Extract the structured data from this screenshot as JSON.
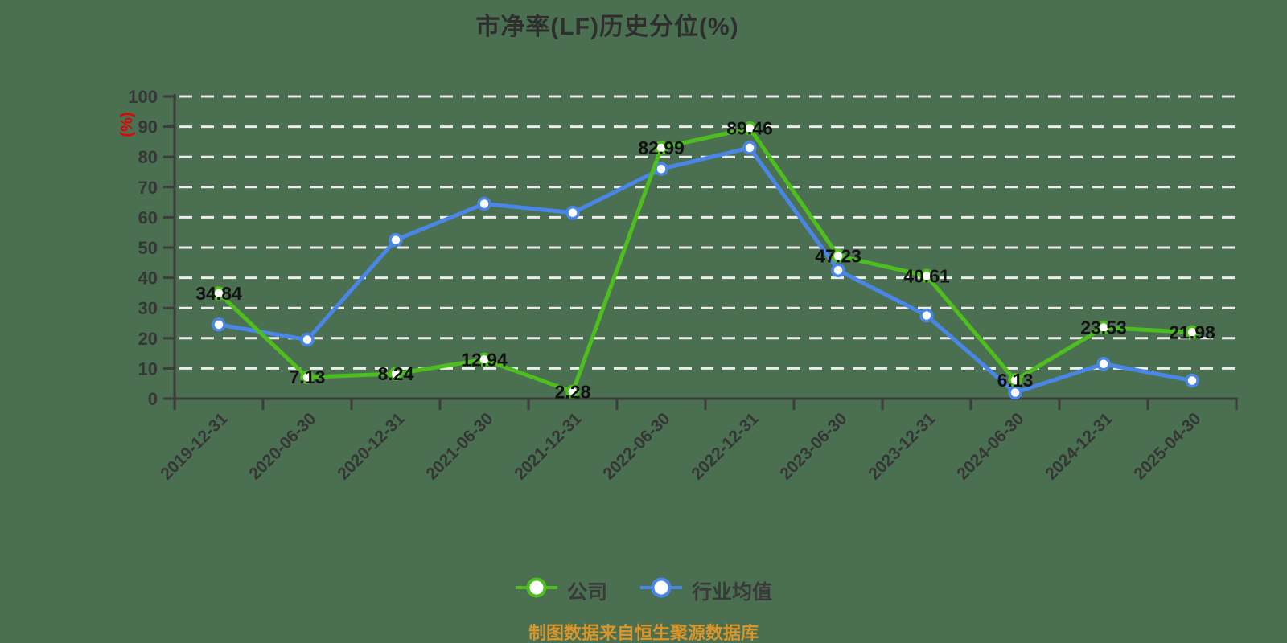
{
  "chart": {
    "title": "市净率(LF)历史分位(%)"
  },
  "colors": {
    "background": "#4a7051",
    "title_text": "#2e2e2e",
    "axis_line": "#3c3c3c",
    "axis_text": "#363636",
    "grid_line": "#ececec",
    "data_label": "#121212",
    "y_axis_name": "#e60000",
    "source_text": "#d9952a",
    "company_series": "#4ebe1f",
    "industry_series": "#4a86e8"
  },
  "chart_data": {
    "type": "line",
    "title": "市净率(LF)历史分位(%)",
    "xlabel": "",
    "ylabel": "(%)",
    "ylim": [
      0,
      100
    ],
    "y_ticks": [
      0,
      10,
      20,
      30,
      40,
      50,
      60,
      70,
      80,
      90,
      100
    ],
    "grid": "horizontal-dashed-white",
    "legend_position": "bottom",
    "x_label_rotation": 45,
    "source_note": "制图数据来自恒生聚源数据库",
    "categories": [
      "2019-12-31",
      "2020-06-30",
      "2020-12-31",
      "2021-06-30",
      "2021-12-31",
      "2022-06-30",
      "2022-12-31",
      "2023-06-30",
      "2023-12-31",
      "2024-06-30",
      "2024-12-31",
      "2025-04-30"
    ],
    "series": [
      {
        "name": "公司",
        "color": "#4ebe1f",
        "show_labels": true,
        "values": [
          34.84,
          7.13,
          8.24,
          12.94,
          2.28,
          82.99,
          89.46,
          47.23,
          40.61,
          6.13,
          23.53,
          21.98
        ]
      },
      {
        "name": "行业均值",
        "color": "#4a86e8",
        "show_labels": false,
        "values": [
          24.5,
          19.5,
          52.5,
          64.5,
          61.5,
          76,
          83,
          42.5,
          27.5,
          2,
          11.5,
          6
        ]
      }
    ]
  }
}
